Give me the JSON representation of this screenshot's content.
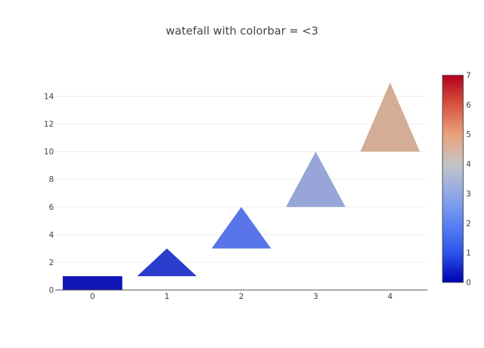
{
  "chart_data": {
    "type": "waterfall",
    "title": "watefall with colorbar = <3",
    "xlabel": "",
    "ylabel": "",
    "categories": [
      "0",
      "1",
      "2",
      "3",
      "4"
    ],
    "bars": [
      {
        "category": "0",
        "base": 0,
        "top": 1,
        "shape": "rectangle",
        "color": "#1216b8"
      },
      {
        "category": "1",
        "base": 1,
        "top": 3,
        "shape": "triangle",
        "color": "#2c3ccc"
      },
      {
        "category": "2",
        "base": 3,
        "top": 6,
        "shape": "triangle",
        "color": "#5a75ea"
      },
      {
        "category": "3",
        "base": 6,
        "top": 10,
        "shape": "triangle",
        "color": "#97a5d8"
      },
      {
        "category": "4",
        "base": 10,
        "top": 15,
        "shape": "triangle",
        "color": "#d3ad96"
      }
    ],
    "ylim": [
      0,
      15.5
    ],
    "yticks": [
      0,
      2,
      4,
      6,
      8,
      10,
      12,
      14
    ],
    "grid": true,
    "colorbar": {
      "range": [
        0,
        7
      ],
      "ticks": [
        0,
        1,
        2,
        3,
        4,
        5,
        6,
        7
      ],
      "colorscale": [
        "#0000b0",
        "#2b54ea",
        "#5c83f4",
        "#91a9e8",
        "#c4c4c4",
        "#eaa27a",
        "#d65540",
        "#b2001c"
      ]
    }
  }
}
